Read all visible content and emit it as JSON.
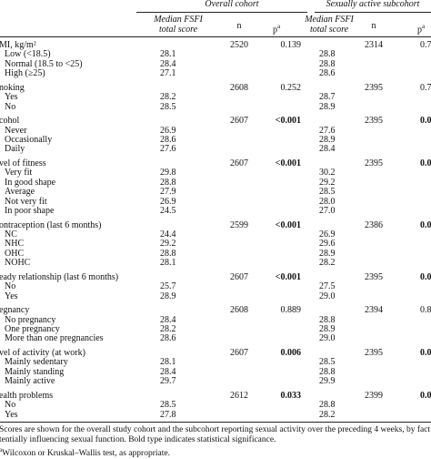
{
  "header": {
    "overall": "Overall cohort",
    "active": "Sexually active subcohort",
    "median1_l1": "Median FSFI",
    "median1_l2": "total score",
    "median2_l1": "Median FSFI",
    "median2_l2": "total score",
    "n1": "n",
    "p1": "p",
    "n2": "n",
    "p2": "p",
    "p_sup": "a"
  },
  "sections": [
    {
      "label": "MI, kg/m²",
      "n1": "2520",
      "p1": "0.139",
      "p1_bold": false,
      "n2": "2314",
      "p2": "0.7",
      "p2_bold": false,
      "rows": [
        {
          "label": "Low (<18.5)",
          "v1": "28.1",
          "v2": "28.8"
        },
        {
          "label": "Normal (18.5 to <25)",
          "v1": "28.4",
          "v2": "28.8"
        },
        {
          "label": "High (≥25)",
          "v1": "27.1",
          "v2": "28.6"
        }
      ]
    },
    {
      "label": "noking",
      "n1": "2608",
      "p1": "0.252",
      "p1_bold": false,
      "n2": "2395",
      "p2": "0.7",
      "p2_bold": false,
      "rows": [
        {
          "label": "Yes",
          "v1": "28.2",
          "v2": "28.7"
        },
        {
          "label": "No",
          "v1": "28.5",
          "v2": "28.9"
        }
      ]
    },
    {
      "label": "cohol",
      "n1": "2607",
      "p1": "<0.001",
      "p1_bold": true,
      "n2": "2395",
      "p2": "0.0",
      "p2_bold": true,
      "rows": [
        {
          "label": "Never",
          "v1": "26.9",
          "v2": "27.6"
        },
        {
          "label": "Occasionally",
          "v1": "28.6",
          "v2": "28.9"
        },
        {
          "label": "Daily",
          "v1": "27.6",
          "v2": "28.4"
        }
      ]
    },
    {
      "label": "vel of fitness",
      "n1": "2607",
      "p1": "<0.001",
      "p1_bold": true,
      "n2": "2395",
      "p2": "0.0",
      "p2_bold": true,
      "rows": [
        {
          "label": "Very fit",
          "v1": "29.8",
          "v2": "30.2"
        },
        {
          "label": "In good shape",
          "v1": "28.8",
          "v2": "29.2"
        },
        {
          "label": "Average",
          "v1": "27.9",
          "v2": "28.5"
        },
        {
          "label": "Not very fit",
          "v1": "26.9",
          "v2": "28.0"
        },
        {
          "label": "In poor shape",
          "v1": "24.5",
          "v2": "27.0"
        }
      ]
    },
    {
      "label": "ontraception (last 6 months)",
      "n1": "2599",
      "p1": "<0.001",
      "p1_bold": true,
      "n2": "2386",
      "p2": "0.0",
      "p2_bold": true,
      "rows": [
        {
          "label": "NC",
          "v1": "24.4",
          "v2": "26.9"
        },
        {
          "label": "NHC",
          "v1": "29.2",
          "v2": "29.6"
        },
        {
          "label": "OHC",
          "v1": "28.8",
          "v2": "28.9"
        },
        {
          "label": "NOHC",
          "v1": "28.1",
          "v2": "28.2"
        }
      ]
    },
    {
      "label": "eady relationship (last 6 months)",
      "n1": "2607",
      "p1": "<0.001",
      "p1_bold": true,
      "n2": "2395",
      "p2": "0.0",
      "p2_bold": true,
      "rows": [
        {
          "label": "No",
          "v1": "25.7",
          "v2": "27.5"
        },
        {
          "label": "Yes",
          "v1": "28.9",
          "v2": "29.0"
        }
      ]
    },
    {
      "label": "egnancy",
      "n1": "2608",
      "p1": "0.889",
      "p1_bold": false,
      "n2": "2394",
      "p2": "0.8",
      "p2_bold": false,
      "rows": [
        {
          "label": "No pregnancy",
          "v1": "28.4",
          "v2": "28.8"
        },
        {
          "label": "One pregnancy",
          "v1": "28.2",
          "v2": "28.9"
        },
        {
          "label": "More than one pregnancies",
          "v1": "28.6",
          "v2": "29.0"
        }
      ]
    },
    {
      "label": "vel of activity (at work)",
      "n1": "2607",
      "p1": "0.006",
      "p1_bold": true,
      "n2": "2395",
      "p2": "0.0",
      "p2_bold": true,
      "rows": [
        {
          "label": "Mainly sedentary",
          "v1": "28.1",
          "v2": "28.5"
        },
        {
          "label": "Mainly standing",
          "v1": "28.4",
          "v2": "28.8"
        },
        {
          "label": "Mainly active",
          "v1": "29.7",
          "v2": "29.9"
        }
      ]
    },
    {
      "label": "ealth problems",
      "n1": "2612",
      "p1": "0.033",
      "p1_bold": true,
      "n2": "2399",
      "p2": "0.0",
      "p2_bold": true,
      "rows": [
        {
          "label": "No",
          "v1": "28.5",
          "v2": "28.8"
        },
        {
          "label": "Yes",
          "v1": "27.8",
          "v2": "28.2"
        }
      ]
    }
  ],
  "notes": [
    "Scores are shown for the overall study cohort and the subcohort reporting sexual activity over the preceding 4 weeks, by fact",
    "tentially influencing sexual function. Bold type indicates statistical significance.",
    "Wilcoxon or Kruskal–Wallis test, as appropriate."
  ],
  "note_mark": "a"
}
